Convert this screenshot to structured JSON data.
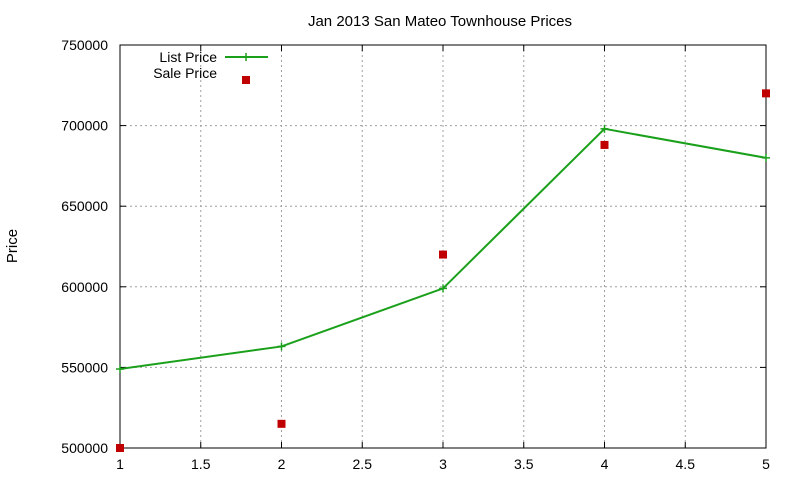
{
  "chart_data": {
    "type": "line",
    "title": "Jan 2013 San Mateo Townhouse Prices",
    "xlabel": "",
    "ylabel": "Price",
    "xlim": [
      1,
      5
    ],
    "ylim": [
      500000,
      750000
    ],
    "x_ticks": [
      1,
      1.5,
      2,
      2.5,
      3,
      3.5,
      4,
      4.5,
      5
    ],
    "x_tick_labels": [
      "1",
      "1.5",
      "2",
      "2.5",
      "3",
      "3.5",
      "4",
      "4.5",
      "5"
    ],
    "y_ticks": [
      500000,
      550000,
      600000,
      650000,
      700000,
      750000
    ],
    "y_tick_labels": [
      "500000",
      "550000",
      "600000",
      "650000",
      "700000",
      "750000"
    ],
    "grid": true,
    "legend_position": "top-left",
    "series": [
      {
        "name": "List Price",
        "style": "line-with-plus-markers",
        "color": "#1aa01a",
        "x": [
          1,
          2,
          3,
          4,
          5
        ],
        "values": [
          549000,
          563000,
          599000,
          698000,
          680000
        ]
      },
      {
        "name": "Sale Price",
        "style": "square-markers",
        "color": "#c00000",
        "x": [
          1,
          2,
          3,
          4,
          5
        ],
        "values": [
          500000,
          515000,
          620000,
          688000,
          720000
        ]
      }
    ]
  }
}
